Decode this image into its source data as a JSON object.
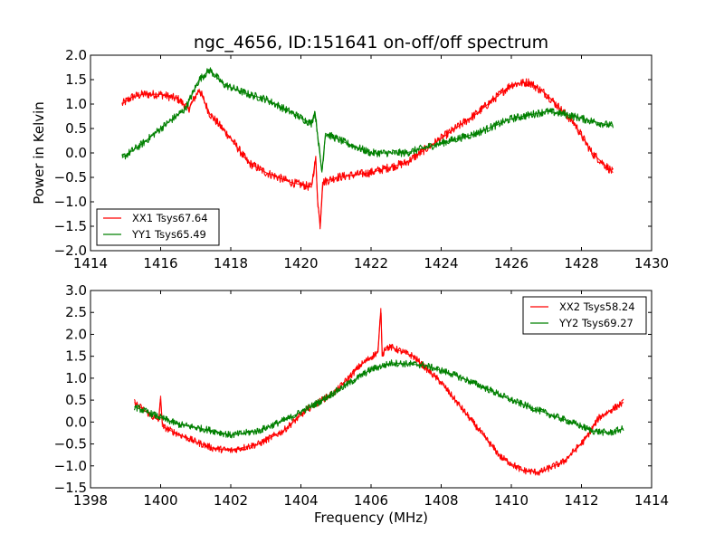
{
  "figure_title": "ngc_4656, ID:151641 on-off/off spectrum",
  "chart_data": [
    {
      "type": "line",
      "title": "ngc_4656, ID:151641 on-off/off spectrum",
      "xlabel": "",
      "ylabel": "Power in Kelvin",
      "xlim": [
        1414,
        1430
      ],
      "ylim": [
        -2.0,
        2.0
      ],
      "xticks": [
        1414,
        1416,
        1418,
        1420,
        1422,
        1424,
        1426,
        1428,
        1430
      ],
      "xtick_labels": [
        "1414",
        "1416",
        "1418",
        "1420",
        "1422",
        "1424",
        "1426",
        "1428",
        "1430"
      ],
      "yticks": [
        -2.0,
        -1.5,
        -1.0,
        -0.5,
        0.0,
        0.5,
        1.0,
        1.5,
        2.0
      ],
      "ytick_labels": [
        "−2.0",
        "−1.5",
        "−1.0",
        "−0.5",
        "0.0",
        "0.5",
        "1.0",
        "1.5",
        "2.0"
      ],
      "grid": false,
      "legend_position": "lower-left",
      "series": [
        {
          "name": "XX1 Tsys67.64",
          "color": "#ff0000",
          "noise": 0.09,
          "x": [
            1414.9,
            1415.2,
            1415.5,
            1416.0,
            1416.5,
            1416.8,
            1417.1,
            1417.4,
            1418.0,
            1418.5,
            1419.0,
            1419.7,
            1420.3,
            1420.42,
            1420.48,
            1420.55,
            1420.62,
            1421.0,
            1422.0,
            1423.0,
            1424.0,
            1425.0,
            1426.0,
            1426.5,
            1427.0,
            1427.8,
            1428.3,
            1428.9
          ],
          "y": [
            1.0,
            1.15,
            1.2,
            1.2,
            1.1,
            0.9,
            1.3,
            0.8,
            0.3,
            -0.2,
            -0.4,
            -0.6,
            -0.7,
            -0.1,
            -1.0,
            -1.5,
            -0.6,
            -0.5,
            -0.4,
            -0.2,
            0.3,
            0.8,
            1.4,
            1.45,
            1.2,
            0.6,
            0.0,
            -0.4
          ]
        },
        {
          "name": "YY1 Tsys65.49",
          "color": "#008000",
          "noise": 0.08,
          "x": [
            1414.9,
            1415.5,
            1416.0,
            1416.7,
            1417.1,
            1417.4,
            1417.8,
            1418.5,
            1419.0,
            1419.8,
            1420.3,
            1420.4,
            1420.6,
            1420.7,
            1421.3,
            1422.0,
            1423.0,
            1424.0,
            1425.0,
            1426.0,
            1427.0,
            1427.5,
            1428.3,
            1428.9
          ],
          "y": [
            -0.1,
            0.2,
            0.5,
            0.9,
            1.5,
            1.7,
            1.4,
            1.2,
            1.1,
            0.8,
            0.6,
            0.85,
            -0.4,
            0.4,
            0.2,
            0.0,
            0.0,
            0.2,
            0.4,
            0.7,
            0.85,
            0.8,
            0.65,
            0.55
          ]
        }
      ]
    },
    {
      "type": "line",
      "title": "",
      "xlabel": "Frequency (MHz)",
      "ylabel": "",
      "xlim": [
        1398,
        1414
      ],
      "ylim": [
        -1.5,
        3.0
      ],
      "xticks": [
        1398,
        1400,
        1402,
        1404,
        1406,
        1408,
        1410,
        1412,
        1414
      ],
      "xtick_labels": [
        "1398",
        "1400",
        "1402",
        "1404",
        "1406",
        "1408",
        "1410",
        "1412",
        "1414"
      ],
      "yticks": [
        -1.5,
        -1.0,
        -0.5,
        0.0,
        0.5,
        1.0,
        1.5,
        2.0,
        2.5,
        3.0
      ],
      "ytick_labels": [
        "−1.5",
        "−1.0",
        "−0.5",
        "0.0",
        "0.5",
        "1.0",
        "1.5",
        "2.0",
        "2.5",
        "3.0"
      ],
      "grid": false,
      "legend_position": "upper-right",
      "series": [
        {
          "name": "XX2 Tsys58.24",
          "color": "#ff0000",
          "noise": 0.08,
          "x": [
            1399.25,
            1399.8,
            1399.95,
            1400.0,
            1400.05,
            1400.3,
            1401.0,
            1401.5,
            1402.0,
            1402.8,
            1403.5,
            1404.2,
            1405.0,
            1405.7,
            1406.2,
            1406.28,
            1406.32,
            1406.4,
            1406.6,
            1407.2,
            1408.0,
            1408.6,
            1409.2,
            1409.7,
            1410.3,
            1410.8,
            1411.5,
            1412.1,
            1412.5,
            1413.2
          ],
          "y": [
            0.45,
            0.1,
            0.05,
            0.6,
            -0.1,
            -0.2,
            -0.45,
            -0.6,
            -0.65,
            -0.5,
            -0.2,
            0.3,
            0.7,
            1.3,
            1.6,
            2.6,
            1.5,
            1.7,
            1.7,
            1.5,
            0.9,
            0.3,
            -0.3,
            -0.8,
            -1.1,
            -1.15,
            -0.9,
            -0.4,
            0.1,
            0.45
          ]
        },
        {
          "name": "YY2 Tsys69.27",
          "color": "#008000",
          "noise": 0.08,
          "x": [
            1399.25,
            1400.0,
            1400.5,
            1401.5,
            1402.0,
            1402.8,
            1403.7,
            1404.5,
            1405.2,
            1406.0,
            1406.6,
            1407.5,
            1408.3,
            1409.2,
            1410.0,
            1411.0,
            1411.7,
            1412.3,
            1412.8,
            1413.2
          ],
          "y": [
            0.35,
            0.1,
            -0.05,
            -0.2,
            -0.3,
            -0.2,
            0.1,
            0.45,
            0.8,
            1.2,
            1.35,
            1.3,
            1.1,
            0.8,
            0.5,
            0.2,
            0.0,
            -0.2,
            -0.25,
            -0.15
          ]
        }
      ]
    }
  ]
}
